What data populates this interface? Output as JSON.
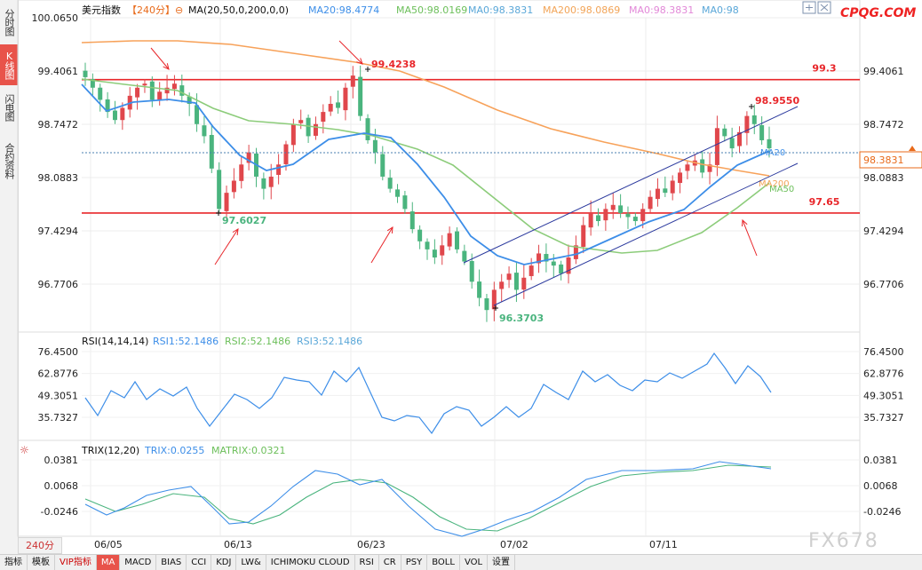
{
  "sidebar": {
    "items": [
      {
        "label": "分时图",
        "active": false
      },
      {
        "label": "K线图",
        "active": true
      },
      {
        "label": "闪电图",
        "active": false
      },
      {
        "label": "合约资料",
        "active": false
      }
    ],
    "period": "240分"
  },
  "header": {
    "name": "美元指数",
    "period": "【240分】",
    "ma_spec": "MA(20,50,0,200,0,0)",
    "ma20": "MA20:98.4774",
    "ma50": "MA50:98.0169",
    "ma0a": "MA0:98.3831",
    "ma200": "MA200:98.0869",
    "ma0b": "MA0:98.3831",
    "ma0c": "MA0:98"
  },
  "watermark": {
    "top": "CPQG.COM",
    "bottom": "FX678"
  },
  "colors": {
    "up": "#e0474c",
    "down": "#4ab47e",
    "ma20": "#3d8ee8",
    "ma50": "#8ccc7a",
    "ma200": "#f7a25a",
    "level": "#e8262a",
    "channel": "#2c3a9e"
  },
  "main": {
    "y_ticks": [
      "100.0650",
      "99.4061",
      "98.7472",
      "98.0883",
      "97.4294",
      "96.7706"
    ],
    "right_ticks": [
      "99.4061",
      "98.7472",
      "98.0883",
      "97.4294",
      "96.7706"
    ],
    "current_price": "98.3831",
    "levels": [
      {
        "label": "99.3",
        "value": 99.3
      },
      {
        "label": "97.65",
        "value": 97.65
      }
    ],
    "annotations": {
      "high1": "99.4238",
      "low1": "97.6027",
      "low2": "96.3703",
      "high2": "98.9550"
    },
    "ma_tags": {
      "ma20": "MA20",
      "ma200": "MA200",
      "ma50": "MA50"
    }
  },
  "rsi": {
    "title": "RSI(14,14,14)",
    "rsi1": "RSI1:52.1486",
    "rsi2": "RSI2:52.1486",
    "rsi3": "RSI3:52.1486",
    "ticks": [
      "76.4500",
      "62.8776",
      "49.3051",
      "35.7327"
    ]
  },
  "trix": {
    "title": "TRIX(12,20)",
    "trix": "TRIX:0.0255",
    "matrix": "MATRIX:0.0321",
    "ticks": [
      "0.0381",
      "0.0068",
      "-0.0246"
    ]
  },
  "x_dates": [
    "06/05",
    "06/13",
    "06/23",
    "07/02",
    "07/11"
  ],
  "toolbar": [
    "指标",
    "模板",
    "VIP指标",
    "MA",
    "MACD",
    "BIAS",
    "CCI",
    "KDJ",
    "LW&",
    "ICHIMOKU CLOUD",
    "RSI",
    "CR",
    "PSY",
    "BOLL",
    "VOL",
    "设置"
  ],
  "chart_data": {
    "type": "candlestick",
    "instrument": "美元指数",
    "timeframe": "240分",
    "ylim": [
      96.3,
      100.065
    ],
    "close_series_approx": [
      99.33,
      99.2,
      99.05,
      98.9,
      98.8,
      98.95,
      99.1,
      99.2,
      99.25,
      99.05,
      99.15,
      99.2,
      99.25,
      99.1,
      99.0,
      98.75,
      98.6,
      98.2,
      97.7,
      97.9,
      98.05,
      98.25,
      98.4,
      98.1,
      97.95,
      98.1,
      98.25,
      98.5,
      98.75,
      98.8,
      98.6,
      98.75,
      98.9,
      99.0,
      98.95,
      99.2,
      99.35,
      98.85,
      98.55,
      98.4,
      98.1,
      97.95,
      97.85,
      97.7,
      97.45,
      97.3,
      97.2,
      97.1,
      97.25,
      97.4,
      97.2,
      97.05,
      96.8,
      96.6,
      96.45,
      96.7,
      96.8,
      96.9,
      96.7,
      96.85,
      97.0,
      97.15,
      97.05,
      97.0,
      96.9,
      97.1,
      97.25,
      97.5,
      97.65,
      97.55,
      97.7,
      97.75,
      97.65,
      97.6,
      97.55,
      97.7,
      97.85,
      97.95,
      97.9,
      98.05,
      98.15,
      98.25,
      98.3,
      98.15,
      98.25,
      98.7,
      98.6,
      98.45,
      98.65,
      98.85,
      98.75,
      98.55,
      98.45
    ],
    "levels": [
      99.3,
      97.65
    ],
    "annotated_highs": [
      99.4238,
      98.955
    ],
    "annotated_lows": [
      97.6027,
      96.3703
    ],
    "last_price": 98.3831,
    "ma": {
      "MA20": 98.4774,
      "MA50": 98.0169,
      "MA200": 98.0869
    },
    "rsi": {
      "ylim": [
        35.7327,
        76.45
      ],
      "RSI1": 52.1486,
      "RSI2": 52.1486,
      "RSI3": 52.1486
    },
    "trix": {
      "ylim": [
        -0.0246,
        0.0381
      ],
      "TRIX": 0.0255,
      "MATRIX": 0.0321
    },
    "x_labels": [
      "06/05",
      "06/13",
      "06/23",
      "07/02",
      "07/11"
    ]
  }
}
